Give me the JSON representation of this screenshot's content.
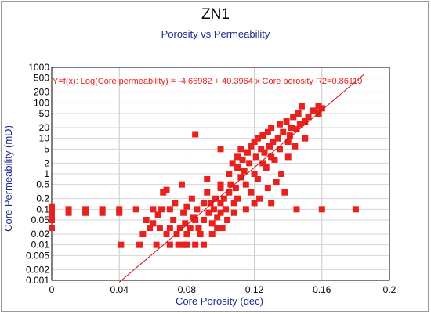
{
  "chart_data": {
    "type": "scatter",
    "title": "ZN1",
    "subtitle": "Porosity vs Permeability",
    "xlabel": "Core Porosity (dec)",
    "ylabel": "Core Permeability (mD)",
    "xlim": [
      0,
      0.2
    ],
    "ylim": [
      0.001,
      1000
    ],
    "yscale": "log",
    "x_ticks": [
      0,
      0.04,
      0.08,
      0.12,
      0.16,
      0.2
    ],
    "x_tick_labels": [
      "0",
      "0.04",
      "0.08",
      "0.12",
      "0.16",
      "0.2"
    ],
    "y_ticks": [
      0.001,
      0.002,
      0.005,
      0.01,
      0.02,
      0.05,
      0.1,
      0.2,
      0.5,
      1,
      2,
      5,
      10,
      20,
      50,
      100,
      200,
      500,
      1000
    ],
    "y_tick_labels": [
      "0.001",
      "0.002",
      "0.005",
      "0.01",
      "0.02",
      "0.05",
      "0.1",
      "0.2",
      "0.5",
      "1",
      "2",
      "5",
      "10",
      "20",
      "50",
      "100",
      "200",
      "500",
      "1000"
    ],
    "grid": true,
    "marker_color": "#e8201e",
    "fit_color": "#cc1010",
    "fit": {
      "equation": "Y=f(x): Log(Core permeability) = -4.66982  +  40.3964 x Core porosity    R2=0.86119",
      "intercept": -4.66982,
      "slope": 40.3964,
      "x_range": [
        0.04,
        0.185
      ]
    },
    "series": [
      {
        "points": [
          [
            0.0,
            0.03
          ],
          [
            0.0,
            0.05
          ],
          [
            0.0,
            0.07
          ],
          [
            0.0,
            0.1
          ],
          [
            0.0,
            0.12
          ],
          [
            0.01,
            0.08
          ],
          [
            0.01,
            0.1
          ],
          [
            0.02,
            0.08
          ],
          [
            0.02,
            0.1
          ],
          [
            0.03,
            0.08
          ],
          [
            0.03,
            0.1
          ],
          [
            0.04,
            0.08
          ],
          [
            0.04,
            0.1
          ],
          [
            0.041,
            0.01
          ],
          [
            0.05,
            0.1
          ],
          [
            0.052,
            0.01
          ],
          [
            0.054,
            0.02
          ],
          [
            0.056,
            0.05
          ],
          [
            0.058,
            0.03
          ],
          [
            0.06,
            0.04
          ],
          [
            0.06,
            0.1
          ],
          [
            0.062,
            0.01
          ],
          [
            0.063,
            0.07
          ],
          [
            0.064,
            0.03
          ],
          [
            0.065,
            0.1
          ],
          [
            0.066,
            0.3
          ],
          [
            0.068,
            0.35
          ],
          [
            0.068,
            0.02
          ],
          [
            0.07,
            0.03
          ],
          [
            0.07,
            0.1
          ],
          [
            0.07,
            0.01
          ],
          [
            0.072,
            0.05
          ],
          [
            0.073,
            0.15
          ],
          [
            0.074,
            0.02
          ],
          [
            0.075,
            0.01
          ],
          [
            0.076,
            0.03
          ],
          [
            0.077,
            0.5
          ],
          [
            0.078,
            0.08
          ],
          [
            0.078,
            0.01
          ],
          [
            0.079,
            0.04
          ],
          [
            0.08,
            0.12
          ],
          [
            0.08,
            0.02
          ],
          [
            0.08,
            0.01
          ],
          [
            0.082,
            0.03
          ],
          [
            0.083,
            0.2
          ],
          [
            0.084,
            0.06
          ],
          [
            0.085,
            0.05
          ],
          [
            0.085,
            0.01
          ],
          [
            0.086,
            0.1
          ],
          [
            0.087,
            0.03
          ],
          [
            0.088,
            0.02
          ],
          [
            0.09,
            0.15
          ],
          [
            0.09,
            0.05
          ],
          [
            0.09,
            0.01
          ],
          [
            0.092,
            0.3
          ],
          [
            0.092,
            0.7
          ],
          [
            0.093,
            0.08
          ],
          [
            0.094,
            0.15
          ],
          [
            0.095,
            0.04
          ],
          [
            0.095,
            0.02
          ],
          [
            0.096,
            0.1
          ],
          [
            0.097,
            0.2
          ],
          [
            0.098,
            0.06
          ],
          [
            0.098,
            0.03
          ],
          [
            0.1,
            0.5
          ],
          [
            0.1,
            0.15
          ],
          [
            0.1,
            0.08
          ],
          [
            0.1,
            0.4
          ],
          [
            0.101,
            0.03
          ],
          [
            0.102,
            0.2
          ],
          [
            0.103,
            0.1
          ],
          [
            0.104,
            0.05
          ],
          [
            0.105,
            0.3
          ],
          [
            0.105,
            1.0
          ],
          [
            0.106,
            0.5
          ],
          [
            0.107,
            2
          ],
          [
            0.108,
            0.15
          ],
          [
            0.108,
            0.08
          ],
          [
            0.109,
            0.4
          ],
          [
            0.11,
            3
          ],
          [
            0.11,
            1.5
          ],
          [
            0.11,
            0.2
          ],
          [
            0.112,
            5
          ],
          [
            0.112,
            0.8
          ],
          [
            0.113,
            2.5
          ],
          [
            0.114,
            1.2
          ],
          [
            0.115,
            0.5
          ],
          [
            0.115,
            0.1
          ],
          [
            0.116,
            4
          ],
          [
            0.117,
            2
          ],
          [
            0.118,
            0.3
          ],
          [
            0.118,
            6
          ],
          [
            0.12,
            8
          ],
          [
            0.12,
            0.15
          ],
          [
            0.12,
            1
          ],
          [
            0.121,
            3
          ],
          [
            0.122,
            10
          ],
          [
            0.122,
            0.7
          ],
          [
            0.123,
            0.2
          ],
          [
            0.124,
            5
          ],
          [
            0.125,
            2
          ],
          [
            0.125,
            12
          ],
          [
            0.126,
            4
          ],
          [
            0.127,
            1.5
          ],
          [
            0.128,
            0.4
          ],
          [
            0.128,
            15
          ],
          [
            0.129,
            6
          ],
          [
            0.13,
            3
          ],
          [
            0.13,
            20
          ],
          [
            0.13,
            0.15
          ],
          [
            0.131,
            8
          ],
          [
            0.132,
            2.5
          ],
          [
            0.133,
            0.6
          ],
          [
            0.134,
            10
          ],
          [
            0.135,
            25
          ],
          [
            0.135,
            5
          ],
          [
            0.136,
            1
          ],
          [
            0.137,
            15
          ],
          [
            0.138,
            0.3
          ],
          [
            0.139,
            30
          ],
          [
            0.14,
            8
          ],
          [
            0.14,
            3
          ],
          [
            0.141,
            12
          ],
          [
            0.142,
            20
          ],
          [
            0.143,
            40
          ],
          [
            0.144,
            6
          ],
          [
            0.145,
            18
          ],
          [
            0.145,
            0.1
          ],
          [
            0.146,
            50
          ],
          [
            0.147,
            25
          ],
          [
            0.148,
            80
          ],
          [
            0.15,
            30
          ],
          [
            0.15,
            10
          ],
          [
            0.152,
            40
          ],
          [
            0.155,
            60
          ],
          [
            0.158,
            50
          ],
          [
            0.158,
            80
          ],
          [
            0.16,
            70
          ],
          [
            0.16,
            0.1
          ],
          [
            0.18,
            0.1
          ],
          [
            0.085,
            13
          ],
          [
            0.1,
            5
          ]
        ]
      }
    ]
  }
}
